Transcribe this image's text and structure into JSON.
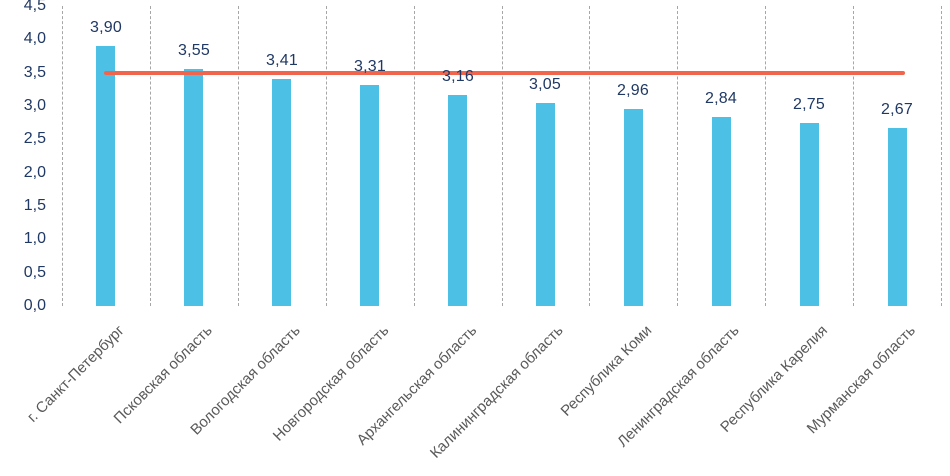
{
  "chart_data": {
    "type": "bar",
    "title": "",
    "legend": "none",
    "grid": "vertical-dashed",
    "categories": [
      "г. Санкт-Петербург",
      "Псковская область",
      "Вологодская область",
      "Новгородская область",
      "Архангельская область",
      "Калининградская область",
      "Республика Коми",
      "Ленинградская область",
      "Республика Карелия",
      "Мурманская область"
    ],
    "values": [
      3.9,
      3.55,
      3.41,
      3.31,
      3.16,
      3.05,
      2.96,
      2.84,
      2.75,
      2.67
    ],
    "value_labels": [
      "3,90",
      "3,55",
      "3,41",
      "3,31",
      "3,16",
      "3,05",
      "2,96",
      "2,84",
      "2,75",
      "2,67"
    ],
    "y_axis": {
      "min": 0.0,
      "max": 4.5,
      "tick_step": 0.5,
      "tick_values": [
        0.0,
        0.5,
        1.0,
        1.5,
        2.0,
        2.5,
        3.0,
        3.5,
        4.0,
        4.5
      ],
      "tick_labels": [
        "0,0",
        "0,5",
        "1,0",
        "1,5",
        "2,0",
        "2,5",
        "3,0",
        "3,5",
        "4,0",
        "4,5"
      ]
    },
    "reference_line": {
      "value": 3.5,
      "color": "#f1654d"
    },
    "colors": {
      "bar": "#4dc0e6",
      "value_label": "#1f3864",
      "y_tick_label": "#1f3864",
      "category_label": "#595959",
      "gridline": "#a6a6a6",
      "background": "#ffffff"
    }
  }
}
